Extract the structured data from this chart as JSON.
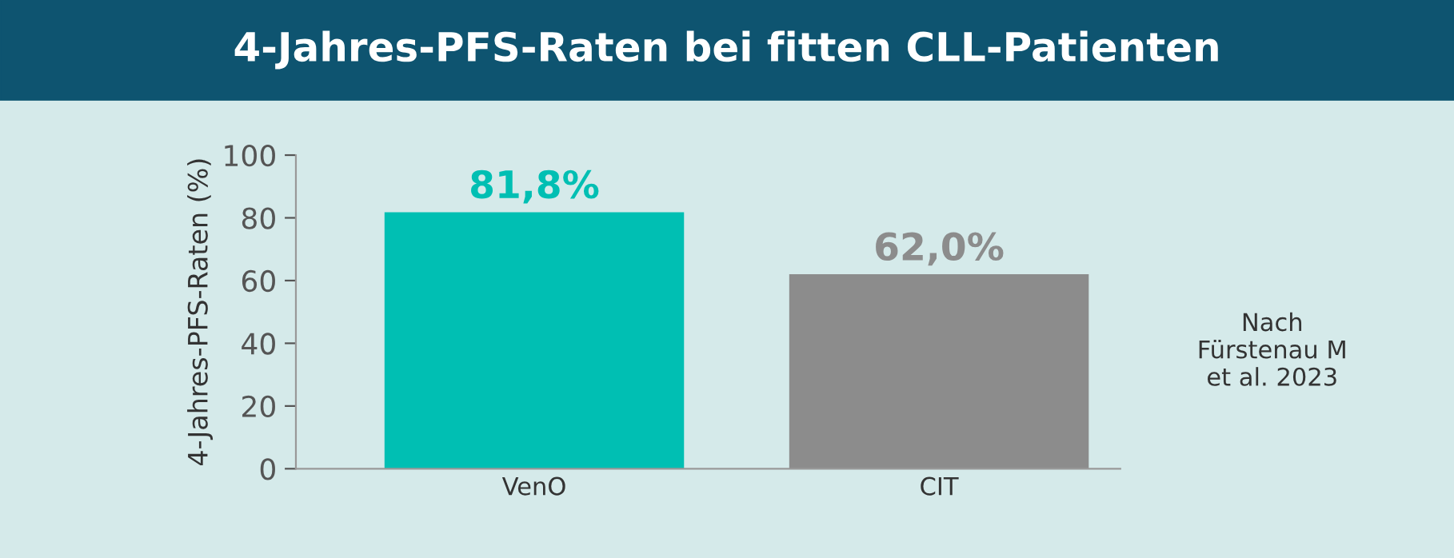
{
  "chart_data": {
    "type": "bar",
    "title": "4-Jahres-PFS-Raten bei fitten CLL-Patienten",
    "ylabel": "4-Jahres-PFS-Raten (%)",
    "categories": [
      "VenO",
      "CIT"
    ],
    "values": [
      81.8,
      62.0
    ],
    "colors": [
      "#00bfb3",
      "#8c8c8c"
    ],
    "value_labels": [
      "81,8%",
      "62,0%"
    ],
    "ylim": [
      0,
      100
    ],
    "yticks": [
      0,
      20,
      40,
      60,
      80,
      100
    ],
    "grid": false,
    "legend": false,
    "annotations": [
      "Nach\nFürstenau M\net al. 2023"
    ]
  }
}
